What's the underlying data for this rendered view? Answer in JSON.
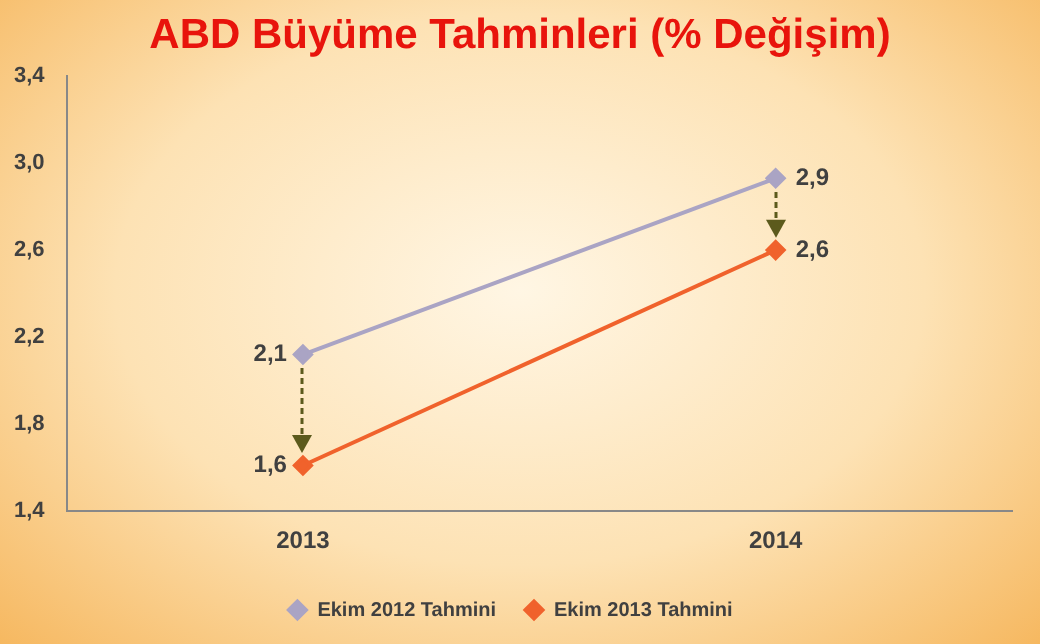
{
  "chart_data": {
    "type": "line",
    "title": "ABD Büyüme Tahminleri (% Değişim)",
    "categories": [
      "2013",
      "2014"
    ],
    "series": [
      {
        "name": "Ekim 2012 Tahmini",
        "color": "#aaa4c4",
        "values": [
          2.12,
          2.93
        ],
        "value_labels": [
          "2,1",
          "2,9"
        ]
      },
      {
        "name": "Ekim 2013 Tahmini",
        "color": "#f0622c",
        "values": [
          1.61,
          2.6
        ],
        "value_labels": [
          "1,6",
          "2,6"
        ]
      }
    ],
    "ylim": [
      1.4,
      3.4
    ],
    "yticks": [
      {
        "value": 1.4,
        "label": "1,4"
      },
      {
        "value": 1.8,
        "label": "1,8"
      },
      {
        "value": 2.2,
        "label": "2,2"
      },
      {
        "value": 2.6,
        "label": "2,6"
      },
      {
        "value": 3.0,
        "label": "3,0"
      },
      {
        "value": 3.4,
        "label": "3,4"
      }
    ],
    "grid": false,
    "legend": "bottom",
    "marker": "diamond",
    "line_style": "solid"
  }
}
